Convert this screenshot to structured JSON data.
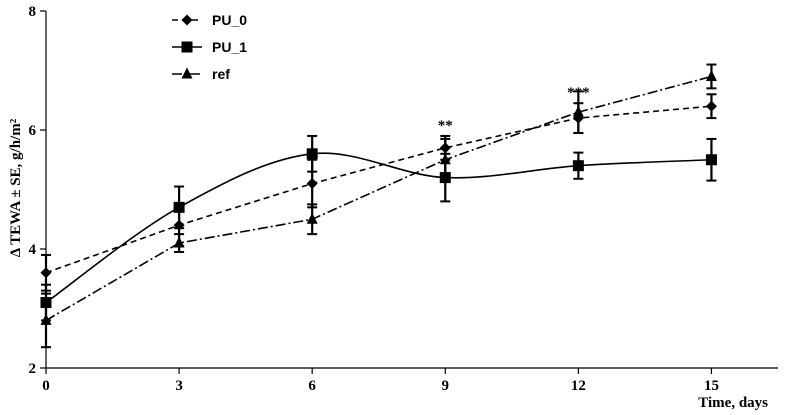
{
  "chart_data": {
    "type": "line",
    "xlabel": "Time, days",
    "ylabel": "Δ TEWA ± SE, g/h/m²",
    "xlim": [
      0,
      16.5
    ],
    "ylim": [
      2,
      8
    ],
    "x_ticks": [
      0,
      3,
      6,
      9,
      12,
      15
    ],
    "x_tick_labels": [
      "0",
      "3",
      "6",
      "9",
      "12",
      "15"
    ],
    "y_ticks": [
      2,
      4,
      6,
      8
    ],
    "y_tick_labels": [
      "2",
      "4",
      "6",
      "8"
    ],
    "grid": false,
    "legend_position": "top-left",
    "series": [
      {
        "name": "PU_0",
        "marker": "diamond",
        "dash": "dashed",
        "smooth": false,
        "x": [
          0,
          3,
          6,
          9,
          12,
          15
        ],
        "y": [
          3.6,
          4.4,
          5.1,
          5.7,
          6.2,
          6.4
        ],
        "err": [
          0.3,
          0.35,
          0.4,
          0.2,
          0.25,
          0.2
        ]
      },
      {
        "name": "PU_1",
        "marker": "square",
        "dash": "solid",
        "smooth": true,
        "x": [
          0,
          3,
          6,
          9,
          12,
          15
        ],
        "y": [
          3.1,
          4.7,
          5.6,
          5.2,
          5.4,
          5.5
        ],
        "err": [
          0.3,
          0.35,
          0.3,
          0.4,
          0.22,
          0.35
        ]
      },
      {
        "name": "ref",
        "marker": "triangle",
        "dash": "dash-dot",
        "smooth": false,
        "x": [
          0,
          3,
          6,
          9,
          12,
          15
        ],
        "y": [
          2.8,
          4.1,
          4.5,
          5.5,
          6.3,
          6.9
        ],
        "err": [
          0.45,
          0.15,
          0.25,
          0.35,
          0.35,
          0.2
        ]
      }
    ],
    "annotations": [
      {
        "text": "**",
        "x": 9
      },
      {
        "text": "***",
        "x": 12
      }
    ],
    "colors": {
      "line": "#000000",
      "background": "#ffffff"
    }
  }
}
